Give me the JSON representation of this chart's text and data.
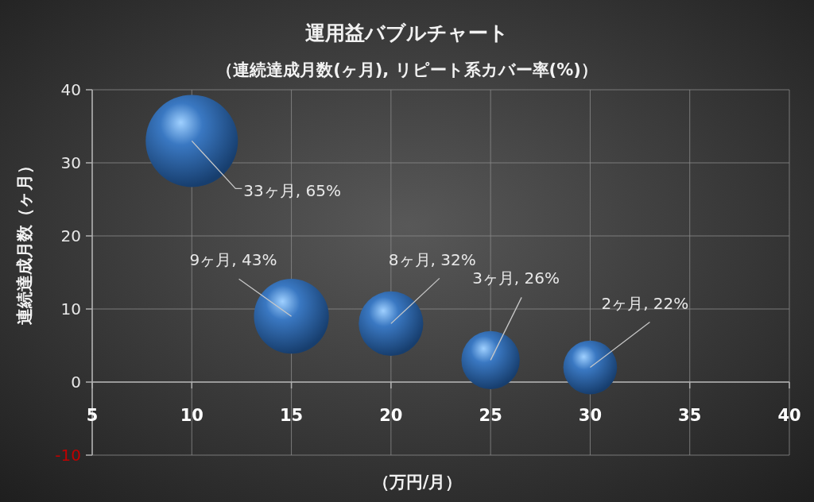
{
  "chart_data": {
    "type": "bubble",
    "title": "運用益バブルチャート",
    "subtitle": "（連続達成月数(ヶ月), リピート系カバー率(%)）",
    "xlabel": "（万円/月）",
    "ylabel": "連続達成月数（ヶ月）",
    "x": [
      10,
      15,
      20,
      25,
      30
    ],
    "values": [
      33,
      9,
      8,
      3,
      2
    ],
    "sizes": [
      1,
      0.66,
      0.49,
      0.4,
      0.34
    ],
    "value_labels": [
      "33ヶ月, 65%",
      "9ヶ月, 43%",
      "8ヶ月, 32%",
      "3ヶ月, 26%",
      "2ヶ月, 22%"
    ],
    "color": "#3a78c2",
    "xlim": [
      5,
      40
    ],
    "ylim": [
      -10,
      40
    ],
    "xticks": [
      5,
      10,
      15,
      20,
      25,
      30,
      35,
      40
    ],
    "yticks": [
      -10,
      0,
      10,
      20,
      30,
      40
    ],
    "grid": true
  }
}
